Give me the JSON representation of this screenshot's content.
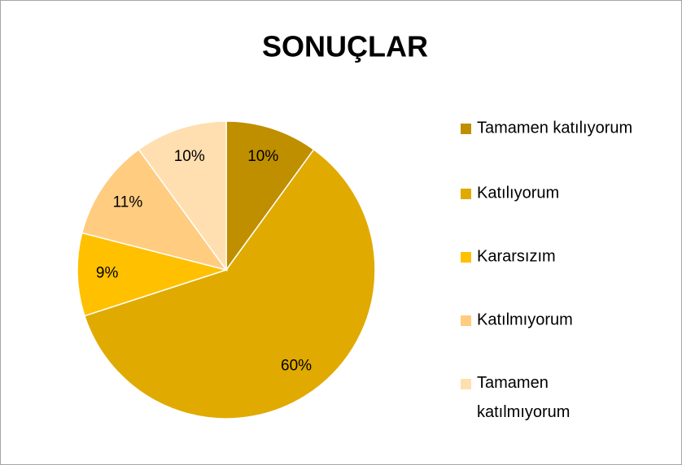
{
  "chart_data": {
    "type": "pie",
    "title": "SONUÇLAR",
    "categories": [
      "Tamamen katılıyorum",
      "Katılıyorum",
      "Kararsızım",
      "Katılmıyorum",
      "Tamamen katılmıyorum"
    ],
    "values": [
      10,
      60,
      9,
      11,
      10
    ],
    "colors": [
      "#bf8f00",
      "#e0aa00",
      "#ffc000",
      "#ffcc80",
      "#ffdfb0"
    ],
    "legend": "right"
  }
}
